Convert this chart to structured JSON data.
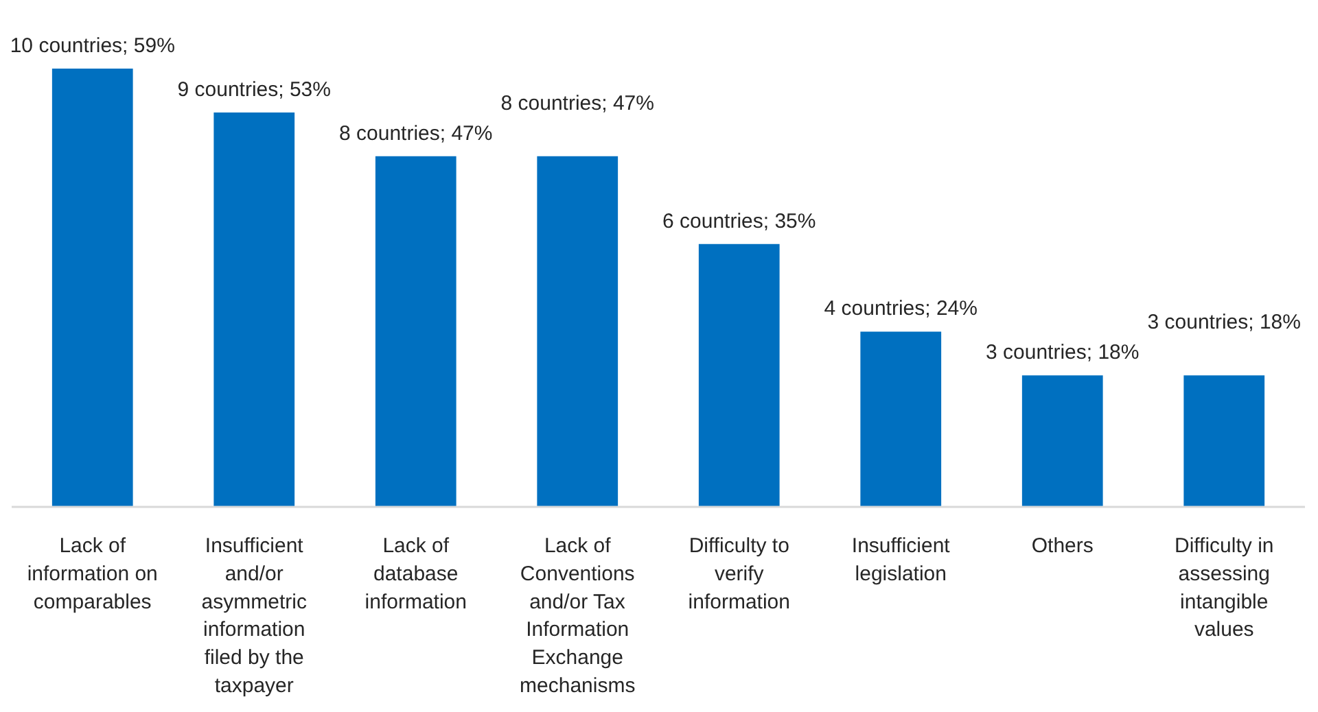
{
  "chart_data": {
    "type": "bar",
    "categories": [
      "Lack of information on comparables",
      "Insufficient and/or asymmetric information filed by the taxpayer",
      "Lack of database information",
      "Lack of Conventions and/or Tax Information Exchange mechanisms",
      "Difficulty to verify information",
      "Insufficient legislation",
      "Others",
      "Difficulty in assessing intangible values"
    ],
    "values": [
      10,
      9,
      8,
      8,
      6,
      4,
      3,
      3
    ],
    "value_labels": [
      "10 countries; 59%",
      "9 countries; 53%",
      "8 countries; 47%",
      "8 countries; 47%",
      "6 countries; 35%",
      "4 countries; 24%",
      "3 countries; 18%",
      "3 countries; 18%"
    ],
    "color": "#0070c0"
  }
}
